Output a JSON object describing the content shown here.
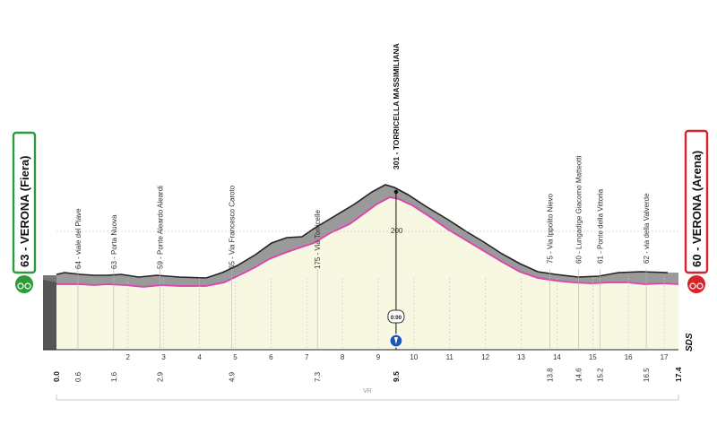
{
  "chart_data": {
    "type": "area",
    "start": {
      "label": "63 - VERONA (Fiera)",
      "color": "#2e9a3a"
    },
    "finish": {
      "label": "60 - VERONA (Arena)",
      "color": "#d6242a"
    },
    "summit": {
      "label": "301 - TORRICELLA MASSIMILIANA",
      "km": 9.5
    },
    "profile_color": "#e040b0",
    "fill_color": "#f7f7e2",
    "waypoints": [
      {
        "label": "64 - viale del Piave",
        "km": 0.6
      },
      {
        "label": "63 - Porta Nuova",
        "km": 1.6
      },
      {
        "label": "59 - Ponte Aleardo Aleardi",
        "km": 2.9
      },
      {
        "label": "65 - Via Francesco Caroto",
        "km": 4.9
      },
      {
        "label": "175 - Via Torricelle",
        "km": 7.3
      },
      {
        "label": "75 - Via Ippolito Nievo",
        "km": 13.8
      },
      {
        "label": "60 - Lungadige Giacomo Matteotti",
        "km": 14.6
      },
      {
        "label": "61 - Ponte della Vittoria",
        "km": 15.2
      },
      {
        "label": "62 - via della Valverde",
        "km": 16.5
      }
    ],
    "km_ticks": [
      2,
      3,
      4,
      5,
      6,
      7,
      8,
      9,
      10,
      11,
      12,
      13,
      14,
      15,
      16,
      17
    ],
    "bold_km": [
      {
        "label": "0.0",
        "km": 0
      },
      {
        "label": "9.5",
        "km": 9.5
      },
      {
        "label": "17.4",
        "km": 17.4
      }
    ],
    "waypoint_km_labels": [
      "0.6",
      "1.6",
      "2.9",
      "4.9",
      "7.3",
      "13.8",
      "14.6",
      "15.2",
      "16.5"
    ],
    "grid_label": "200",
    "vr_label": "VR",
    "sds_label": "SDS",
    "timing_label": "0:00",
    "km_max": 17.4
  }
}
